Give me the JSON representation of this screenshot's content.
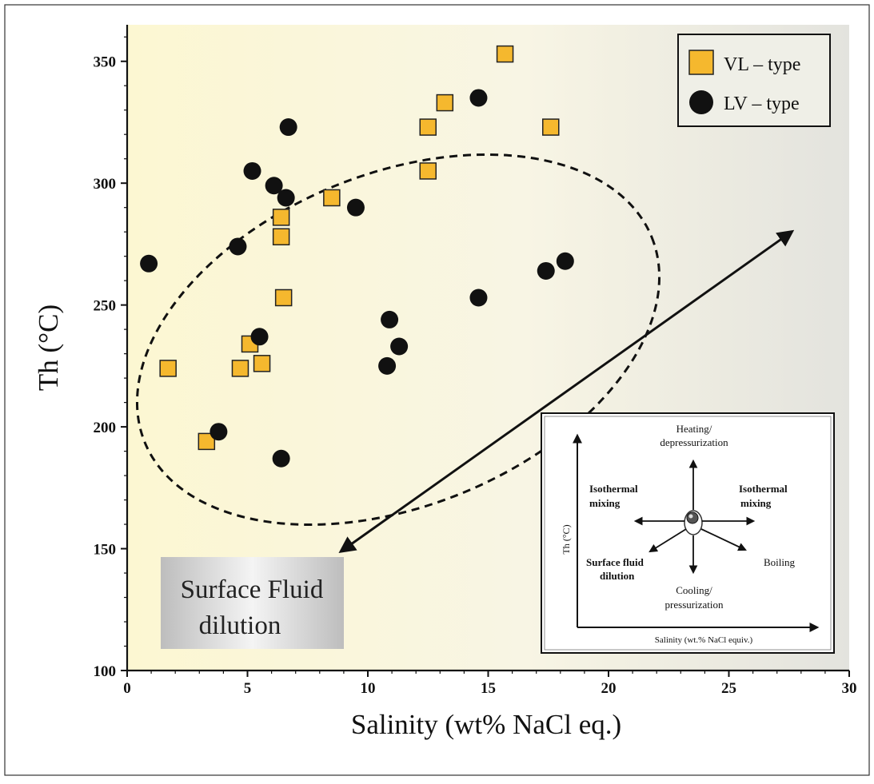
{
  "chart_data": {
    "type": "scatter",
    "xlabel": "Salinity  (wt% NaCl eq.)",
    "ylabel": "Th (°C)",
    "xlim": [
      0,
      30
    ],
    "ylim": [
      100,
      365
    ],
    "x_ticks": [
      0,
      5,
      10,
      15,
      20,
      25,
      30
    ],
    "y_ticks": [
      100,
      150,
      200,
      250,
      300,
      350
    ],
    "grid": false,
    "legend_position": "top-right",
    "series": [
      {
        "name": "VL – type",
        "marker": "square",
        "color": "#F5B82E",
        "points": [
          {
            "x": 15.7,
            "y": 353
          },
          {
            "x": 13.2,
            "y": 333
          },
          {
            "x": 12.5,
            "y": 323
          },
          {
            "x": 17.6,
            "y": 323
          },
          {
            "x": 12.5,
            "y": 305
          },
          {
            "x": 8.5,
            "y": 294
          },
          {
            "x": 6.4,
            "y": 286
          },
          {
            "x": 6.4,
            "y": 278
          },
          {
            "x": 6.5,
            "y": 253
          },
          {
            "x": 5.1,
            "y": 234
          },
          {
            "x": 5.6,
            "y": 226
          },
          {
            "x": 4.7,
            "y": 224
          },
          {
            "x": 1.7,
            "y": 224
          },
          {
            "x": 3.3,
            "y": 194
          }
        ]
      },
      {
        "name": "LV – type",
        "marker": "circle",
        "color": "#111111",
        "points": [
          {
            "x": 14.6,
            "y": 335
          },
          {
            "x": 6.7,
            "y": 323
          },
          {
            "x": 5.2,
            "y": 305
          },
          {
            "x": 6.1,
            "y": 299
          },
          {
            "x": 6.6,
            "y": 294
          },
          {
            "x": 9.5,
            "y": 290
          },
          {
            "x": 4.6,
            "y": 274
          },
          {
            "x": 0.9,
            "y": 267
          },
          {
            "x": 18.2,
            "y": 268
          },
          {
            "x": 17.4,
            "y": 264
          },
          {
            "x": 14.6,
            "y": 253
          },
          {
            "x": 10.9,
            "y": 244
          },
          {
            "x": 5.5,
            "y": 237
          },
          {
            "x": 11.3,
            "y": 233
          },
          {
            "x": 10.8,
            "y": 225
          },
          {
            "x": 3.8,
            "y": 198
          },
          {
            "x": 6.4,
            "y": 187
          }
        ]
      }
    ],
    "annotations": {
      "region": "dashed ellipse enclosing the data",
      "arrow": {
        "from": [
          8.9,
          149
        ],
        "to": [
          27.6,
          280
        ]
      },
      "trend_box_text_lines": [
        "Surface Fluid",
        "dilution"
      ]
    },
    "inset": {
      "type": "diagram",
      "y_axis_label": "Th (°C)",
      "x_axis_label": "Salinity (wt.% NaCl equiv.)",
      "labels": {
        "up_line1": "Heating/",
        "up_line2": "depressurization",
        "left_line1": "Isothermal",
        "left_line2": "mixing",
        "right_line1": "Isothermal",
        "right_line2": "mixing",
        "down_left_line1": "Surface fluid",
        "down_left_line2": "dilution",
        "down_right": "Boiling",
        "down_line1": "Cooling/",
        "down_line2": "pressurization"
      }
    }
  }
}
